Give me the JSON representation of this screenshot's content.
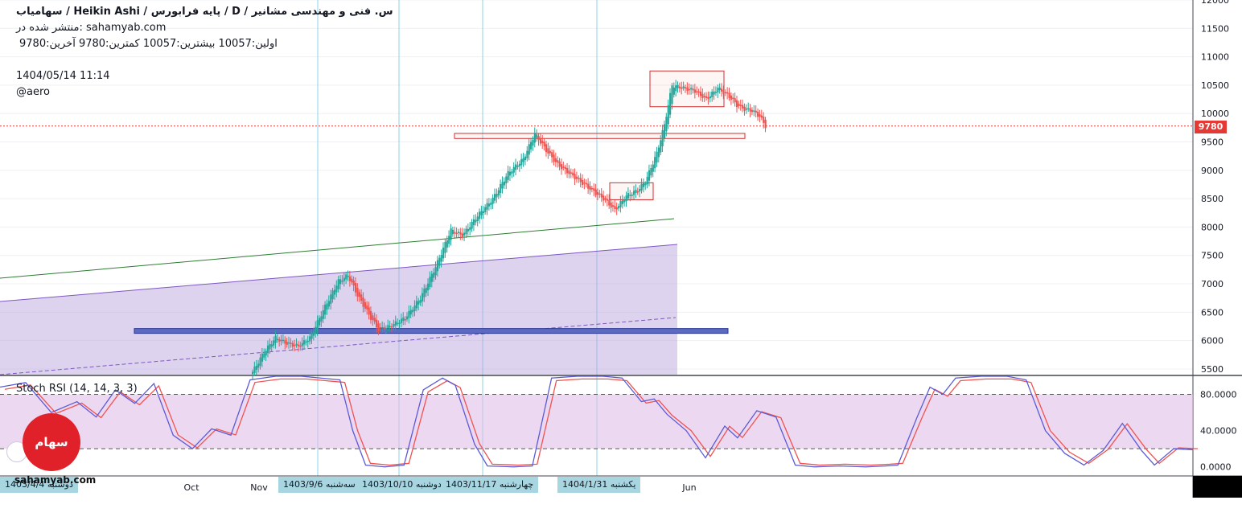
{
  "header": {
    "title": "سهامیاب / Heikin Ashi  /  پایه فرابورس  /  D  /  س. فنی و مهندسی مشانیر",
    "published": "منتشر شده در: sahamyab.com",
    "ohlc": "اولین:10057  بیشترین:10057  کمترین:9780  آخرین:9780",
    "datetime": "1404/05/14 11:14",
    "author": "@aero"
  },
  "indicator": {
    "title": "Stoch RSI (14, 14, 3, 3)"
  },
  "watermark": {
    "logo_text": "سهام یاب",
    "site": "sahamyab.com"
  },
  "colors": {
    "bull": "#26a69a",
    "bear": "#ef5350",
    "k_line": "#5b5bd6",
    "d_line": "#ef5350",
    "band": "#e1bee7",
    "channel": "#b39ddb",
    "trendline": "#2e7d32",
    "support": "#5c6bc0",
    "zone": "#d32f2f"
  },
  "chart_data": [
    {
      "type": "candlestick",
      "style": "Heikin Ashi",
      "timeframe": "D",
      "ylim": [
        5400,
        12000
      ],
      "y_ticks": [
        5500,
        6000,
        6500,
        7000,
        7500,
        8000,
        8500,
        9000,
        9500,
        10000,
        10500,
        11000,
        11500,
        12000
      ],
      "x_tick_labels": [
        "Oct",
        "Nov",
        "Jun"
      ],
      "last_price": 9780,
      "last_price_label": "9780",
      "close_path": [
        [
          0,
          5450
        ],
        [
          6,
          5800
        ],
        [
          12,
          6050
        ],
        [
          18,
          5950
        ],
        [
          24,
          5900
        ],
        [
          30,
          6050
        ],
        [
          38,
          6600
        ],
        [
          45,
          7050
        ],
        [
          50,
          7150
        ],
        [
          55,
          6800
        ],
        [
          62,
          6400
        ],
        [
          66,
          6200
        ],
        [
          72,
          6250
        ],
        [
          80,
          6400
        ],
        [
          88,
          6750
        ],
        [
          96,
          7300
        ],
        [
          104,
          7950
        ],
        [
          110,
          7850
        ],
        [
          118,
          8200
        ],
        [
          126,
          8500
        ],
        [
          134,
          8950
        ],
        [
          142,
          9200
        ],
        [
          148,
          9650
        ],
        [
          154,
          9350
        ],
        [
          160,
          9100
        ],
        [
          168,
          8900
        ],
        [
          176,
          8700
        ],
        [
          184,
          8500
        ],
        [
          190,
          8300
        ],
        [
          196,
          8550
        ],
        [
          202,
          8650
        ],
        [
          206,
          8800
        ],
        [
          212,
          9300
        ],
        [
          216,
          9800
        ],
        [
          220,
          10500
        ],
        [
          226,
          10450
        ],
        [
          232,
          10400
        ],
        [
          238,
          10250
        ],
        [
          244,
          10450
        ],
        [
          250,
          10300
        ],
        [
          254,
          10150
        ],
        [
          258,
          10080
        ],
        [
          262,
          10050
        ],
        [
          266,
          9950
        ],
        [
          269,
          9780
        ]
      ],
      "drawings": {
        "support_line": 6170,
        "zones": [
          [
            9560,
            9650
          ],
          [
            8480,
            8780
          ],
          [
            10120,
            10750
          ]
        ]
      }
    },
    {
      "type": "line",
      "title": "Stoch RSI (14, 14, 3, 3)",
      "ylim": [
        -10,
        100
      ],
      "y_ticks": [
        0,
        40,
        80
      ],
      "y_tick_labels": [
        "0.0000",
        "40.0000",
        "80.0000"
      ],
      "bands": [
        20,
        80
      ],
      "k_path": [
        [
          0,
          88
        ],
        [
          8,
          93
        ],
        [
          16,
          60
        ],
        [
          24,
          72
        ],
        [
          30,
          55
        ],
        [
          36,
          85
        ],
        [
          42,
          70
        ],
        [
          48,
          92
        ],
        [
          54,
          35
        ],
        [
          60,
          20
        ],
        [
          66,
          42
        ],
        [
          72,
          35
        ],
        [
          78,
          96
        ],
        [
          86,
          100
        ],
        [
          94,
          100
        ],
        [
          100,
          98
        ],
        [
          106,
          96
        ],
        [
          110,
          40
        ],
        [
          114,
          2
        ],
        [
          120,
          0
        ],
        [
          126,
          2
        ],
        [
          132,
          85
        ],
        [
          138,
          98
        ],
        [
          142,
          90
        ],
        [
          148,
          25
        ],
        [
          152,
          1
        ],
        [
          160,
          0
        ],
        [
          166,
          1
        ],
        [
          172,
          98
        ],
        [
          180,
          100
        ],
        [
          188,
          100
        ],
        [
          194,
          98
        ],
        [
          200,
          72
        ],
        [
          204,
          75
        ],
        [
          208,
          58
        ],
        [
          214,
          40
        ],
        [
          220,
          10
        ],
        [
          226,
          45
        ],
        [
          230,
          32
        ],
        [
          236,
          62
        ],
        [
          242,
          55
        ],
        [
          248,
          2
        ],
        [
          254,
          0
        ],
        [
          262,
          1
        ],
        [
          270,
          0
        ],
        [
          276,
          1
        ],
        [
          280,
          2
        ],
        [
          286,
          55
        ],
        [
          290,
          88
        ],
        [
          294,
          80
        ],
        [
          298,
          98
        ],
        [
          306,
          100
        ],
        [
          314,
          100
        ],
        [
          320,
          96
        ],
        [
          326,
          40
        ],
        [
          332,
          15
        ],
        [
          338,
          2
        ],
        [
          344,
          18
        ],
        [
          350,
          48
        ],
        [
          356,
          18
        ],
        [
          360,
          2
        ],
        [
          366,
          20
        ],
        [
          372,
          19
        ]
      ]
    }
  ],
  "date_labels": [
    "1403/4/4  دوشنبه",
    "1403/9/6  سه‌شنبه",
    "1403/10/10  دوشنبه",
    "1403/11/17  چهارشنبه",
    "1404/1/31  یکشنبه"
  ]
}
